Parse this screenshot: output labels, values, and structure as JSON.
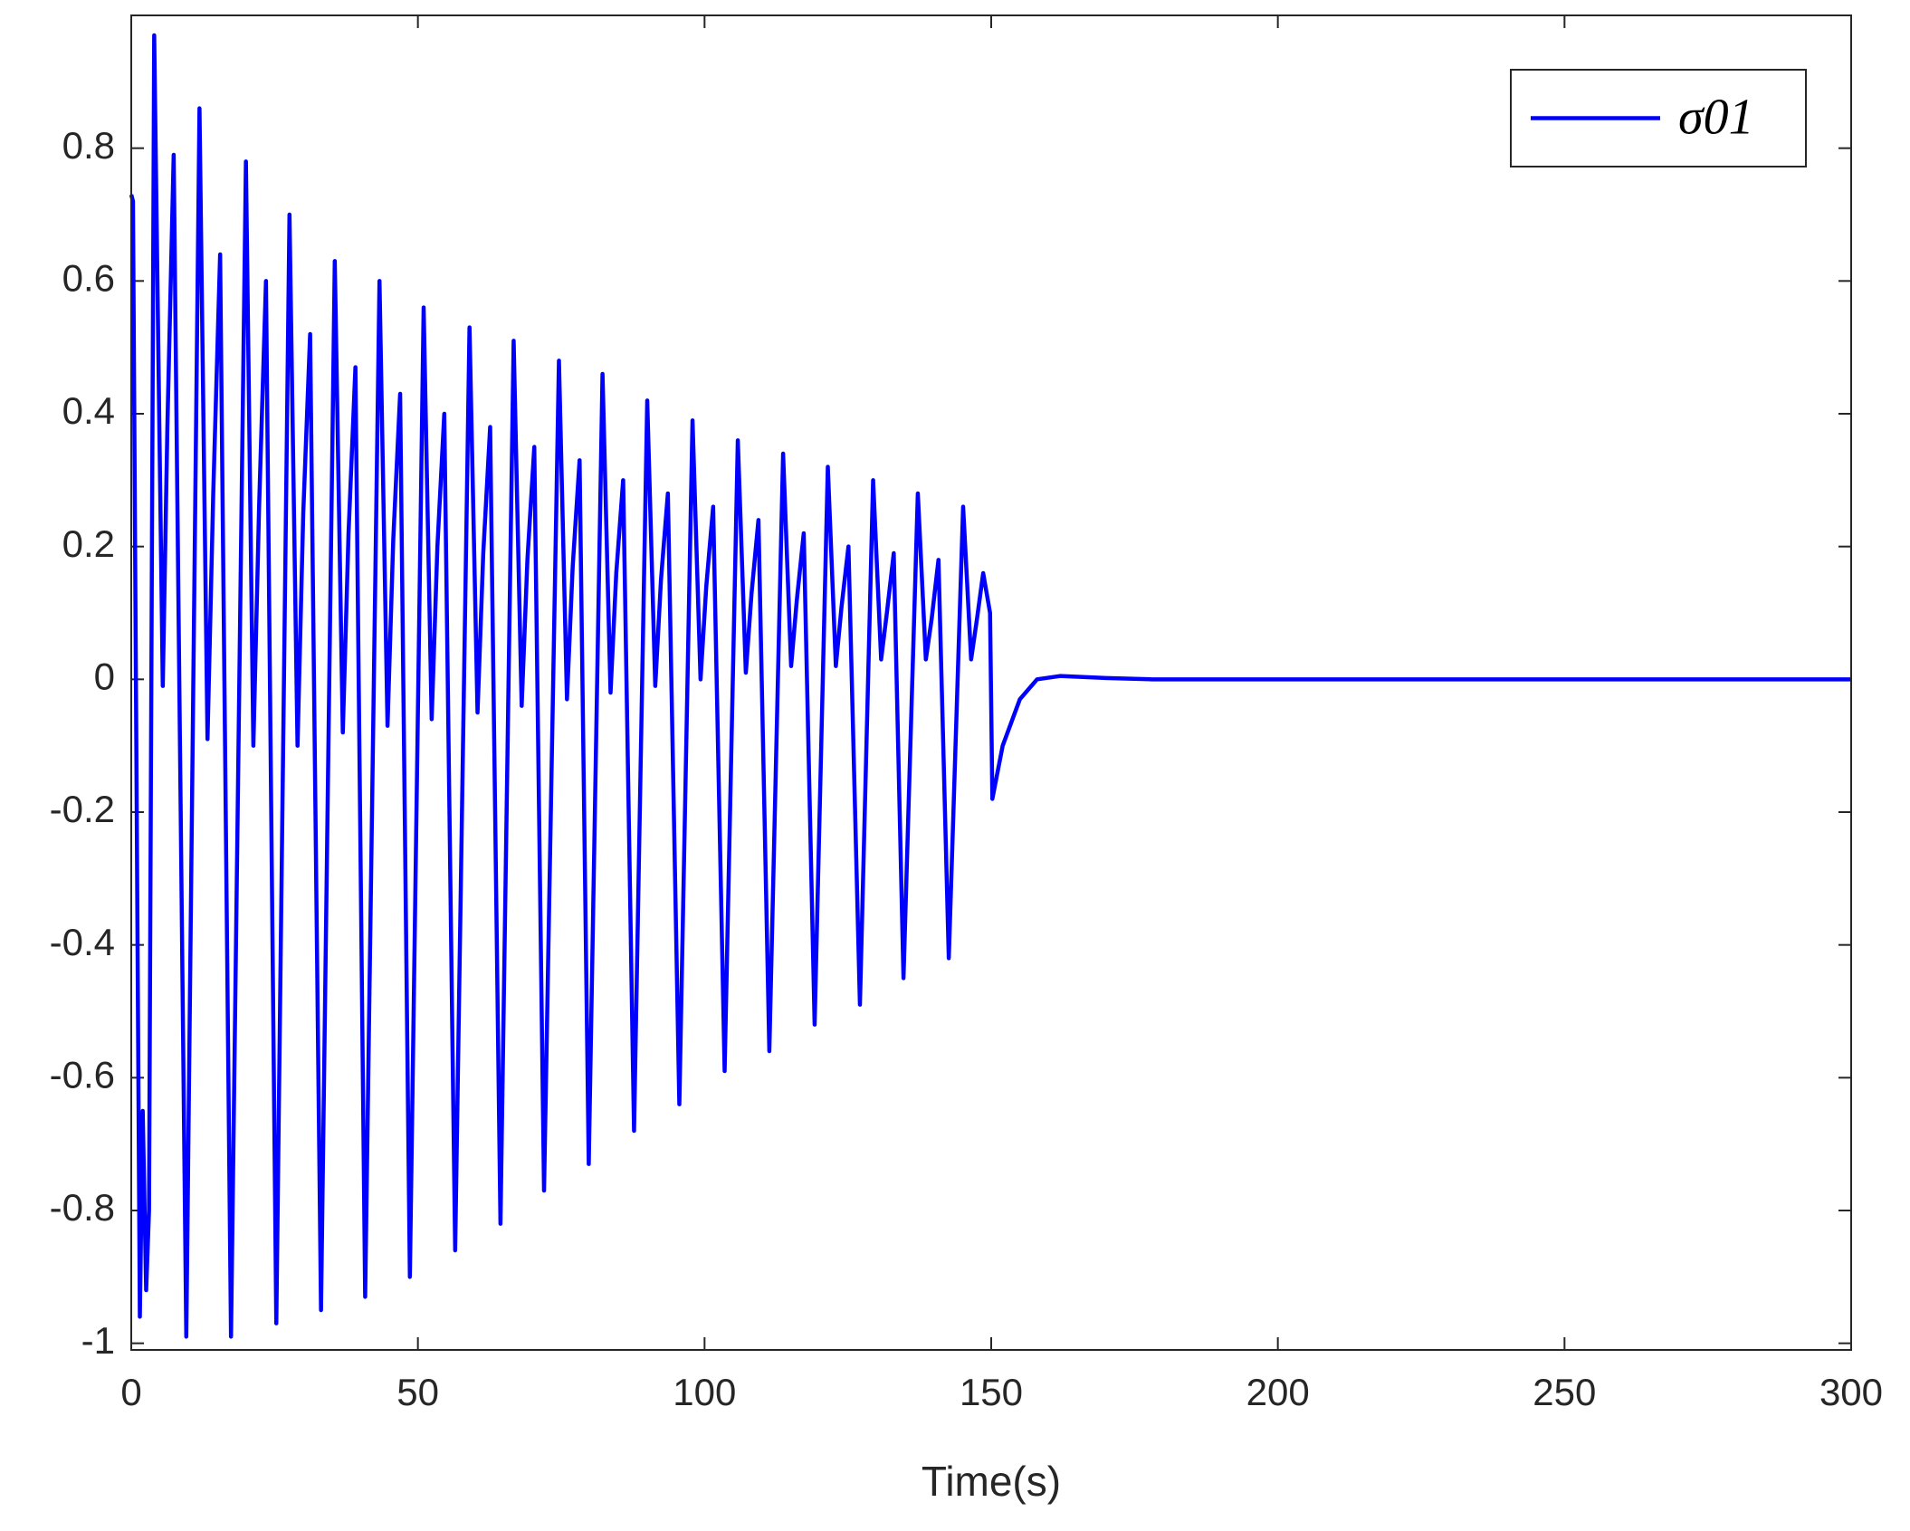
{
  "chart_data": {
    "type": "line",
    "x": [
      0,
      0.3,
      1.5,
      2.0,
      2.6,
      3.1,
      4.0,
      5.5,
      6.3,
      7.4,
      9.6,
      11.9,
      13.3,
      14.3,
      15.5,
      17.4,
      20.0,
      21.3,
      22.3,
      23.5,
      25.3,
      27.6,
      29.0,
      30.0,
      31.2,
      33.1,
      35.5,
      36.9,
      37.9,
      39.1,
      40.8,
      43.3,
      44.7,
      45.7,
      46.9,
      48.6,
      51.0,
      52.4,
      53.4,
      54.6,
      56.5,
      59.0,
      60.4,
      61.4,
      62.6,
      64.4,
      66.7,
      68.1,
      69.1,
      70.3,
      72.0,
      74.6,
      76.0,
      77.0,
      78.2,
      79.8,
      82.2,
      83.6,
      84.6,
      85.8,
      87.7,
      90.0,
      91.4,
      92.4,
      93.6,
      95.6,
      97.9,
      99.3,
      100.3,
      101.5,
      103.5,
      105.8,
      107.2,
      108.2,
      109.4,
      111.3,
      113.7,
      115.1,
      116.1,
      117.3,
      119.2,
      121.5,
      122.9,
      123.9,
      125.1,
      127.1,
      129.4,
      130.8,
      131.8,
      133.0,
      134.7,
      137.2,
      138.6,
      139.6,
      140.8,
      142.6,
      145.1,
      146.5,
      147.5,
      148.6,
      149.8,
      150.2,
      152,
      155,
      158,
      162,
      170,
      178,
      300
    ],
    "series": [
      {
        "name": "σ01",
        "color": "#0000ff",
        "values": [
          0.73,
          0.72,
          -0.96,
          -0.65,
          -0.92,
          -0.8,
          0.97,
          -0.01,
          0.38,
          0.79,
          -0.99,
          0.86,
          -0.09,
          0.28,
          0.64,
          -0.99,
          0.78,
          -0.1,
          0.26,
          0.6,
          -0.97,
          0.7,
          -0.1,
          0.25,
          0.52,
          -0.95,
          0.63,
          -0.08,
          0.22,
          0.47,
          -0.93,
          0.6,
          -0.07,
          0.21,
          0.43,
          -0.9,
          0.56,
          -0.06,
          0.2,
          0.4,
          -0.86,
          0.53,
          -0.05,
          0.19,
          0.38,
          -0.82,
          0.51,
          -0.04,
          0.18,
          0.35,
          -0.77,
          0.48,
          -0.03,
          0.17,
          0.33,
          -0.73,
          0.46,
          -0.02,
          0.16,
          0.3,
          -0.68,
          0.42,
          -0.01,
          0.15,
          0.28,
          -0.64,
          0.39,
          0.0,
          0.14,
          0.26,
          -0.59,
          0.36,
          0.01,
          0.13,
          0.24,
          -0.56,
          0.34,
          0.02,
          0.12,
          0.22,
          -0.52,
          0.32,
          0.02,
          0.11,
          0.2,
          -0.49,
          0.3,
          0.03,
          0.1,
          0.19,
          -0.45,
          0.28,
          0.03,
          0.09,
          0.18,
          -0.42,
          0.26,
          0.03,
          0.09,
          0.16,
          0.1,
          -0.18,
          -0.1,
          -0.03,
          0,
          0.005,
          0.002,
          0,
          0
        ]
      }
    ],
    "xlabel": "Time(s)",
    "xlim": [
      0,
      300
    ],
    "xticks": [
      0,
      50,
      100,
      150,
      200,
      250,
      300
    ],
    "ylim": [
      -1.01,
      1.0
    ],
    "yticks": [
      -1,
      -0.8,
      -0.6,
      -0.4,
      -0.2,
      0,
      0.2,
      0.4,
      0.6,
      0.8
    ],
    "legend": "upper right"
  }
}
